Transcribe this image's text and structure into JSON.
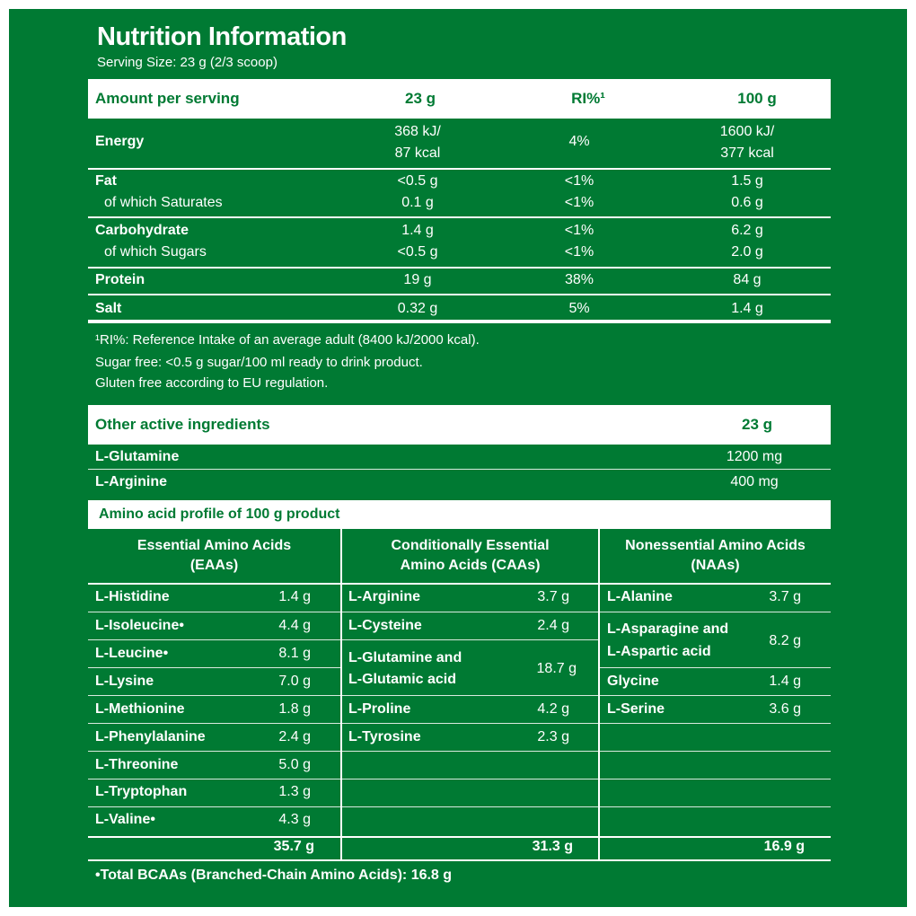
{
  "title": "Nutrition Information",
  "serving_size": "Serving Size: 23 g (2/3 scoop)",
  "nutrition": {
    "headers": [
      "Amount per serving",
      "23 g",
      "RI%¹",
      "100 g"
    ],
    "rows": [
      {
        "name": "Energy",
        "v23a": "368 kJ/",
        "v23b": "87 kcal",
        "ri": "4%",
        "v100a": "1600 kJ/",
        "v100b": "377 kcal"
      },
      {
        "name": "Fat",
        "v23": "<0.5 g",
        "ri": "<1%",
        "v100": "1.5 g"
      },
      {
        "name": "of which Saturates",
        "v23": "0.1 g",
        "ri": "<1%",
        "v100": "0.6 g"
      },
      {
        "name": "Carbohydrate",
        "v23": "1.4 g",
        "ri": "<1%",
        "v100": "6.2 g"
      },
      {
        "name": "of which Sugars",
        "v23": "<0.5 g",
        "ri": "<1%",
        "v100": "2.0 g"
      },
      {
        "name": "Protein",
        "v23": "19 g",
        "ri": "38%",
        "v100": "84 g"
      },
      {
        "name": "Salt",
        "v23": "0.32 g",
        "ri": "5%",
        "v100": "1.4 g"
      }
    ]
  },
  "notes": [
    "¹RI%: Reference Intake of an average adult (8400 kJ/2000 kcal).",
    "Sugar free: <0.5 g sugar/100 ml ready to drink product.",
    "Gluten free according to EU regulation."
  ],
  "other": {
    "header": "Other active ingredients",
    "header_amount": "23 g",
    "rows": [
      {
        "name": "L-Glutamine",
        "value": "1200 mg"
      },
      {
        "name": "L-Arginine",
        "value": "400 mg"
      }
    ]
  },
  "amino": {
    "header": "Amino acid profile of 100 g product",
    "col_headers": [
      [
        "Essential Amino Acids",
        "(EAAs)"
      ],
      [
        "Conditionally Essential",
        "Amino Acids (CAAs)"
      ],
      [
        "Nonessential Amino Acids",
        "(NAAs)"
      ]
    ],
    "eaa": [
      {
        "name": "L-Histidine",
        "value": "1.4 g"
      },
      {
        "name": "L-Isoleucine•",
        "value": "4.4 g"
      },
      {
        "name": "L-Leucine•",
        "value": "8.1 g"
      },
      {
        "name": "L-Lysine",
        "value": "7.0 g"
      },
      {
        "name": "L-Methionine",
        "value": "1.8 g"
      },
      {
        "name": "L-Phenylalanine",
        "value": "2.4 g"
      },
      {
        "name": "L-Threonine",
        "value": "5.0 g"
      },
      {
        "name": "L-Tryptophan",
        "value": "1.3 g"
      },
      {
        "name": "L-Valine•",
        "value": "4.3 g"
      }
    ],
    "caa": [
      {
        "name": "L-Arginine",
        "value": "3.7 g"
      },
      {
        "name": "L-Cysteine",
        "value": "2.4 g"
      },
      {
        "name_a": "L-Glutamine and",
        "name_b": "L-Glutamic acid",
        "value": "18.7 g"
      },
      {
        "name": "L-Proline",
        "value": "4.2 g"
      },
      {
        "name": "L-Tyrosine",
        "value": "2.3 g"
      }
    ],
    "naa": [
      {
        "name": "L-Alanine",
        "value": "3.7 g"
      },
      {
        "name_a": "L-Asparagine and",
        "name_b": "L-Aspartic acid",
        "value": "8.2 g"
      },
      {
        "name": "Glycine",
        "value": "1.4 g"
      },
      {
        "name": "L-Serine",
        "value": "3.6 g"
      }
    ],
    "totals": [
      "35.7 g",
      "31.3 g",
      "16.9 g"
    ],
    "footnote": "•Total BCAAs (Branched-Chain Amino Acids): 16.8 g"
  }
}
